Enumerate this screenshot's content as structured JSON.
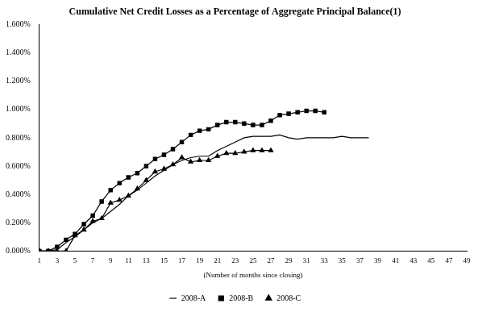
{
  "chart_data": {
    "type": "line",
    "title": "Cumulative Net Credit Losses as a Percentage of Aggregate Principal Balance(1)",
    "x_label": "(Number of months since closing)",
    "x": [
      1,
      2,
      3,
      4,
      5,
      6,
      7,
      8,
      9,
      10,
      11,
      12,
      13,
      14,
      15,
      16,
      17,
      18,
      19,
      20,
      21,
      22,
      23,
      24,
      25,
      26,
      27,
      28,
      29,
      30,
      31,
      32,
      33,
      34,
      35,
      36,
      37,
      38
    ],
    "xlim": [
      1,
      49
    ],
    "xticks": [
      1,
      3,
      5,
      7,
      9,
      11,
      13,
      15,
      17,
      19,
      21,
      23,
      25,
      27,
      29,
      31,
      33,
      35,
      37,
      39,
      41,
      43,
      45,
      47,
      49
    ],
    "ylim": [
      0,
      1.6
    ],
    "yticks": [
      {
        "value": 0,
        "label": "0.000%"
      },
      {
        "value": 0.2,
        "label": "0.200%"
      },
      {
        "value": 0.4,
        "label": "0.400%"
      },
      {
        "value": 0.6,
        "label": "0.600%"
      },
      {
        "value": 0.8,
        "label": "0.800%"
      },
      {
        "value": 1.0,
        "label": "1.000%"
      },
      {
        "value": 1.2,
        "label": "1.200%"
      },
      {
        "value": 1.4,
        "label": "1.400%"
      },
      {
        "value": 1.6,
        "label": "1.600%"
      }
    ],
    "grid": false,
    "legend": "bottom",
    "series": [
      {
        "name": "2008-A",
        "color": "#000000",
        "marker": "none",
        "values": [
          0,
          0,
          0.01,
          0.06,
          0.1,
          0.15,
          0.2,
          0.23,
          0.28,
          0.33,
          0.39,
          0.43,
          0.48,
          0.53,
          0.57,
          0.61,
          0.64,
          0.66,
          0.67,
          0.67,
          0.71,
          0.74,
          0.77,
          0.8,
          0.81,
          0.81,
          0.81,
          0.82,
          0.8,
          0.79,
          0.8,
          0.8,
          0.8,
          0.8,
          0.81,
          0.8,
          0.8,
          0.8
        ]
      },
      {
        "name": "2008-B",
        "color": "#000000",
        "marker": "square",
        "values": [
          0,
          0,
          0.03,
          0.08,
          0.12,
          0.19,
          0.25,
          0.35,
          0.43,
          0.48,
          0.52,
          0.55,
          0.6,
          0.65,
          0.68,
          0.72,
          0.77,
          0.82,
          0.85,
          0.86,
          0.89,
          0.91,
          0.91,
          0.9,
          0.89,
          0.89,
          0.92,
          0.96,
          0.97,
          0.98,
          0.99,
          0.99,
          0.98,
          null,
          null,
          null,
          null,
          null
        ]
      },
      {
        "name": "2008-C",
        "color": "#000000",
        "marker": "triangle",
        "values": [
          0,
          0,
          0,
          0,
          0.11,
          0.15,
          0.21,
          0.23,
          0.34,
          0.36,
          0.39,
          0.44,
          0.5,
          0.56,
          0.58,
          0.61,
          0.66,
          0.63,
          0.64,
          0.64,
          0.67,
          0.69,
          0.69,
          0.7,
          0.71,
          0.71,
          0.71,
          null,
          null,
          null,
          null,
          null,
          null,
          null,
          null,
          null,
          null,
          null
        ]
      }
    ]
  }
}
